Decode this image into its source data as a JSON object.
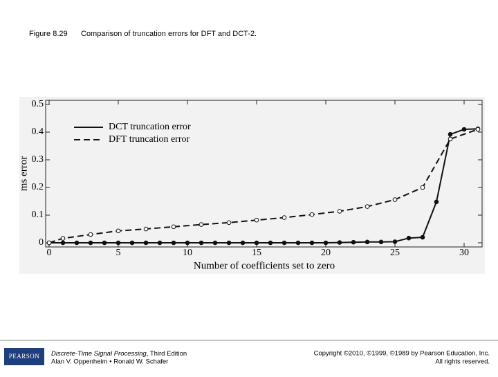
{
  "caption": {
    "label": "Figure 8.29",
    "text": "Comparison of truncation errors for DFT and DCT-2."
  },
  "chart_data": {
    "type": "line",
    "xlabel": "Number of coefficients set to zero",
    "ylabel": "ms error",
    "xlim": [
      0,
      31.3
    ],
    "ylim": [
      0,
      0.5
    ],
    "xticks": [
      0,
      5,
      10,
      15,
      20,
      25,
      30
    ],
    "yticks": [
      {
        "value": 0,
        "label": "0"
      },
      0.1,
      0.2,
      0.3,
      0.4,
      0.5
    ],
    "legend": "upper left",
    "series": [
      {
        "name": "DCT truncation error",
        "color": "#111111",
        "dash": "solid",
        "marker": "filled",
        "x": [
          0,
          1,
          2,
          3,
          4,
          5,
          6,
          7,
          8,
          9,
          10,
          11,
          12,
          13,
          14,
          15,
          16,
          17,
          18,
          19,
          20,
          21,
          22,
          23,
          24,
          25,
          26,
          27,
          28,
          29,
          30,
          31
        ],
        "values": [
          0,
          0,
          0,
          0,
          0,
          0,
          0,
          0,
          0,
          0,
          0,
          0,
          0,
          0,
          0,
          0,
          0,
          0,
          0,
          0,
          0,
          0.001,
          0.002,
          0.003,
          0.003,
          0.004,
          0.017,
          0.02,
          0.148,
          0.392,
          0.41,
          0.412
        ]
      },
      {
        "name": "DFT truncation error",
        "color": "#111111",
        "dash": "dashed",
        "marker": "open",
        "x": [
          0,
          1,
          3,
          5,
          7,
          9,
          11,
          13,
          15,
          17,
          19,
          21,
          23,
          25,
          27,
          29,
          31
        ],
        "values": [
          0,
          0.016,
          0.03,
          0.043,
          0.05,
          0.058,
          0.066,
          0.073,
          0.082,
          0.091,
          0.102,
          0.114,
          0.131,
          0.156,
          0.2,
          0.375,
          0.41
        ]
      }
    ]
  },
  "footer": {
    "logo": "PEARSON",
    "book_title": "Discrete-Time Signal Processing",
    "edition": ", Third Edition",
    "authors": "Alan V. Oppenheim • Ronald W. Schafer",
    "copyright": "Copyright ©2010, ©1999, ©1989 by Pearson Education, Inc.",
    "rights": "All rights reserved."
  }
}
